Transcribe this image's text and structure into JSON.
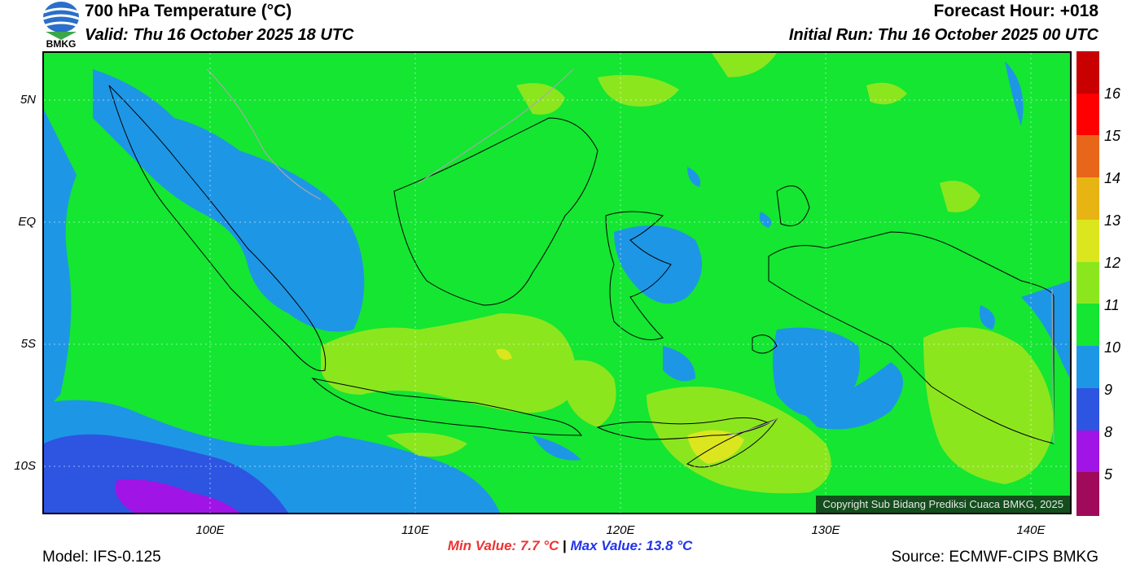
{
  "header": {
    "title": "700 hPa Temperature (°C)",
    "valid": "Valid: Thu 16 October 2025 18 UTC",
    "forecast_hour": "Forecast Hour: +018",
    "initial_run": "Initial Run: Thu 16 October 2025 00 UTC",
    "logo_text": "BMKG"
  },
  "map": {
    "lat_ticks": [
      "5N",
      "EQ",
      "5S",
      "10S"
    ],
    "lon_ticks": [
      "100E",
      "110E",
      "120E",
      "130E",
      "140E"
    ],
    "copyright": "Copyright Sub Bidang Prediksi Cuaca BMKG, 2025"
  },
  "colorbar": {
    "labels": [
      "16",
      "15",
      "14",
      "13",
      "12",
      "11",
      "10",
      "9",
      "8",
      "5"
    ],
    "colors": [
      "#c80000",
      "#ff0000",
      "#e8661a",
      "#e8b414",
      "#dce61e",
      "#8ce61e",
      "#14e632",
      "#1e96e6",
      "#2d55e1",
      "#a014e6",
      "#a00a5a"
    ]
  },
  "footer": {
    "min_label": "Min Value: 7.7 °C",
    "separator": "|",
    "max_label": "Max Value: 13.8 °C",
    "model": "Model: IFS-0.125",
    "source": "Source: ECMWF-CIPS BMKG"
  }
}
